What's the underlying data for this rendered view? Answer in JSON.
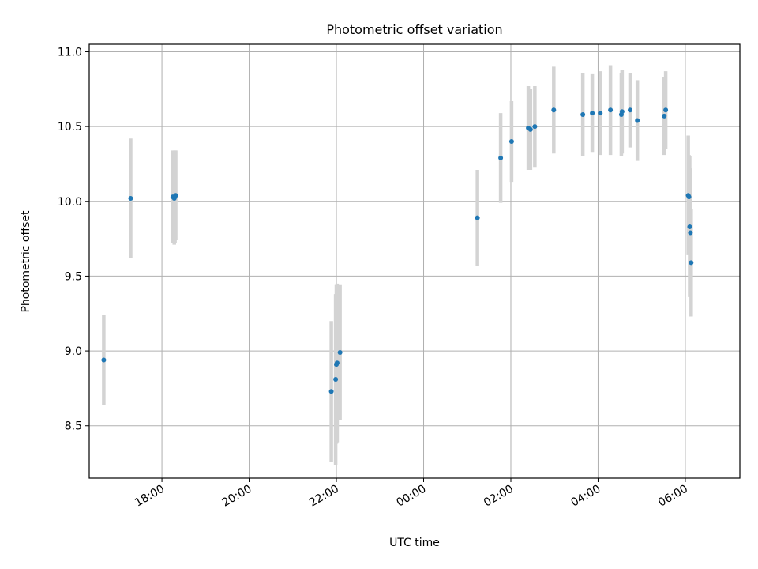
{
  "chart_data": {
    "type": "scatter",
    "title": "Photometric offset variation",
    "xlabel": "UTC time",
    "ylabel": "Photometric offset",
    "x_axis_type": "time",
    "x_ticks": [
      "18:00",
      "20:00",
      "22:00",
      "00:00",
      "02:00",
      "04:00",
      "06:00"
    ],
    "y_ticks": [
      8.5,
      9.0,
      9.5,
      10.0,
      10.5,
      11.0
    ],
    "ylim": [
      8.15,
      11.05
    ],
    "grid": true,
    "errorbar_color": "#d3d3d3",
    "marker_color": "#1f77b4",
    "series": [
      {
        "points": [
          {
            "x": "16:40",
            "y": 8.94,
            "yerr": 0.3
          },
          {
            "x": "17:17",
            "y": 10.02,
            "yerr": 0.4
          },
          {
            "x": "18:15",
            "y": 10.03,
            "yerr": 0.31
          },
          {
            "x": "18:17",
            "y": 10.02,
            "yerr": 0.31
          },
          {
            "x": "18:18",
            "y": 10.03,
            "yerr": 0.31
          },
          {
            "x": "18:19",
            "y": 10.04,
            "yerr": 0.3
          },
          {
            "x": "21:53",
            "y": 8.73,
            "yerr": 0.47
          },
          {
            "x": "21:59",
            "y": 8.81,
            "yerr": 0.57
          },
          {
            "x": "22:00",
            "y": 8.91,
            "yerr": 0.53
          },
          {
            "x": "22:01",
            "y": 8.92,
            "yerr": 0.53
          },
          {
            "x": "22:05",
            "y": 8.99,
            "yerr": 0.45
          },
          {
            "x": "01:14",
            "y": 9.89,
            "yerr": 0.32
          },
          {
            "x": "01:46",
            "y": 10.29,
            "yerr": 0.3
          },
          {
            "x": "02:01",
            "y": 10.4,
            "yerr": 0.27
          },
          {
            "x": "02:24",
            "y": 10.49,
            "yerr": 0.28
          },
          {
            "x": "02:27",
            "y": 10.48,
            "yerr": 0.27
          },
          {
            "x": "02:33",
            "y": 10.5,
            "yerr": 0.27
          },
          {
            "x": "02:59",
            "y": 10.61,
            "yerr": 0.29
          },
          {
            "x": "03:39",
            "y": 10.58,
            "yerr": 0.28
          },
          {
            "x": "03:52",
            "y": 10.59,
            "yerr": 0.26
          },
          {
            "x": "04:03",
            "y": 10.59,
            "yerr": 0.28
          },
          {
            "x": "04:17",
            "y": 10.61,
            "yerr": 0.3
          },
          {
            "x": "04:32",
            "y": 10.58,
            "yerr": 0.28
          },
          {
            "x": "04:33",
            "y": 10.6,
            "yerr": 0.28
          },
          {
            "x": "04:44",
            "y": 10.61,
            "yerr": 0.25
          },
          {
            "x": "04:54",
            "y": 10.54,
            "yerr": 0.27
          },
          {
            "x": "05:31",
            "y": 10.57,
            "yerr": 0.26
          },
          {
            "x": "05:33",
            "y": 10.61,
            "yerr": 0.26
          },
          {
            "x": "06:04",
            "y": 10.04,
            "yerr": 0.4
          },
          {
            "x": "06:05",
            "y": 10.03,
            "yerr": 0.28
          },
          {
            "x": "06:06",
            "y": 9.83,
            "yerr": 0.47
          },
          {
            "x": "06:07",
            "y": 9.79,
            "yerr": 0.43
          },
          {
            "x": "06:08",
            "y": 9.59,
            "yerr": 0.36
          }
        ]
      }
    ]
  }
}
